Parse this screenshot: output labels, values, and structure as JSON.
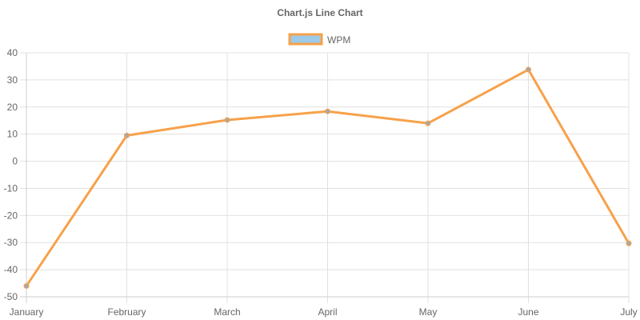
{
  "chart_data": {
    "type": "line",
    "title": "Chart.js Line Chart",
    "categories": [
      "January",
      "February",
      "March",
      "April",
      "May",
      "June",
      "July"
    ],
    "series": [
      {
        "name": "WPM",
        "values": [
          -46,
          9.5,
          15.2,
          18.4,
          14,
          33.8,
          -30.3
        ],
        "line_color": "#f7a14a",
        "point_color": "#a8a8a8",
        "legend_fill": "#9ecae9",
        "legend_border": "#f7a14a"
      }
    ],
    "ylim": [
      -50,
      40
    ],
    "y_ticks": [
      "40",
      "30",
      "20",
      "10",
      "0",
      "-10",
      "-20",
      "-30",
      "-40",
      "-50"
    ],
    "grid": true,
    "legend_position": "top",
    "xlabel": "",
    "ylabel": ""
  }
}
